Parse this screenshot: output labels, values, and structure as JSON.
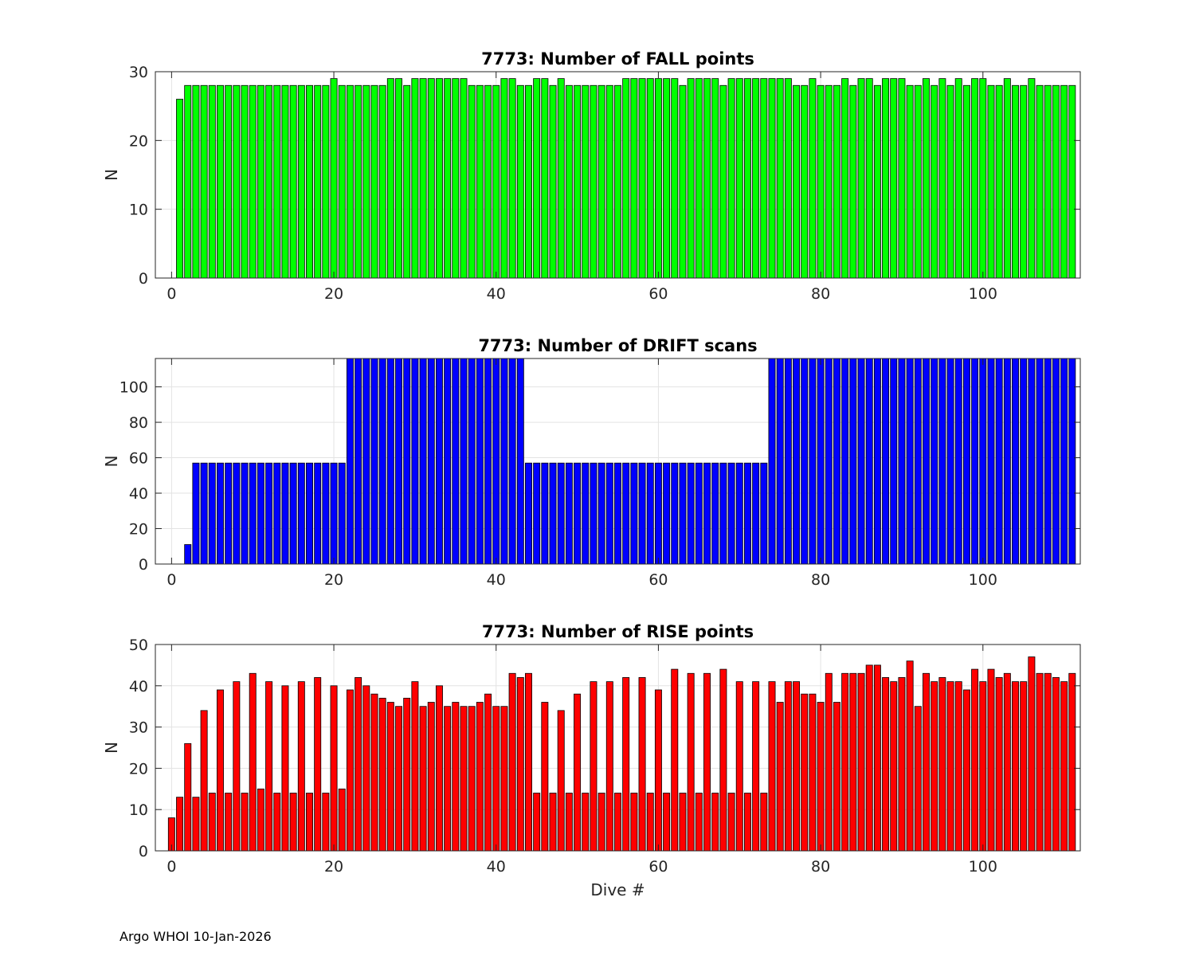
{
  "footer_text": "Argo WHOI 10-Jan-2026",
  "chart_data": [
    {
      "type": "bar",
      "title": "7773: Number of FALL points",
      "xlabel": "",
      "ylabel": "N",
      "xlim": [
        -2,
        112
      ],
      "ylim": [
        0,
        30
      ],
      "xticks": [
        0,
        20,
        40,
        60,
        80,
        100
      ],
      "yticks": [
        0,
        10,
        20,
        30
      ],
      "grid": true,
      "color": "#00ff00",
      "x_start": 0,
      "values": [
        0,
        26,
        28,
        28,
        28,
        28,
        28,
        28,
        28,
        28,
        28,
        28,
        28,
        28,
        28,
        28,
        28,
        28,
        28,
        28,
        29,
        28,
        28,
        28,
        28,
        28,
        28,
        29,
        29,
        28,
        29,
        29,
        29,
        29,
        29,
        29,
        29,
        28,
        28,
        28,
        28,
        29,
        29,
        28,
        28,
        29,
        29,
        28,
        29,
        28,
        28,
        28,
        28,
        28,
        28,
        28,
        29,
        29,
        29,
        29,
        29,
        29,
        29,
        28,
        29,
        29,
        29,
        29,
        28,
        29,
        29,
        29,
        29,
        29,
        29,
        29,
        29,
        28,
        28,
        29,
        28,
        28,
        28,
        29,
        28,
        29,
        29,
        28,
        29,
        29,
        29,
        28,
        28,
        29,
        28,
        29,
        28,
        29,
        28,
        29,
        29,
        28,
        28,
        29,
        28,
        28,
        29,
        28,
        28,
        28,
        28,
        28
      ]
    },
    {
      "type": "bar",
      "title": "7773: Number of DRIFT scans",
      "xlabel": "",
      "ylabel": "N",
      "xlim": [
        -2,
        112
      ],
      "ylim": [
        0,
        116
      ],
      "xticks": [
        0,
        20,
        40,
        60,
        80,
        100
      ],
      "yticks": [
        0,
        20,
        40,
        60,
        80,
        100
      ],
      "grid": true,
      "color": "#0000ff",
      "x_start": 0,
      "values": [
        0,
        0,
        11,
        57,
        57,
        57,
        57,
        57,
        57,
        57,
        57,
        57,
        57,
        57,
        57,
        57,
        57,
        57,
        57,
        57,
        57,
        57,
        116,
        116,
        116,
        116,
        116,
        116,
        116,
        116,
        116,
        116,
        116,
        116,
        116,
        116,
        116,
        116,
        116,
        116,
        116,
        116,
        116,
        116,
        57,
        57,
        57,
        57,
        57,
        57,
        57,
        57,
        57,
        57,
        57,
        57,
        57,
        57,
        57,
        57,
        57,
        57,
        57,
        57,
        57,
        57,
        57,
        57,
        57,
        57,
        57,
        57,
        57,
        57,
        116,
        116,
        116,
        116,
        116,
        116,
        116,
        116,
        116,
        116,
        116,
        116,
        116,
        116,
        116,
        116,
        116,
        116,
        116,
        116,
        116,
        116,
        116,
        116,
        116,
        116,
        116,
        116,
        116,
        116,
        116,
        116,
        116,
        116,
        116,
        116,
        116,
        116
      ]
    },
    {
      "type": "bar",
      "title": "7773: Number of RISE points",
      "xlabel": "Dive #",
      "ylabel": "N",
      "xlim": [
        -2,
        112
      ],
      "ylim": [
        0,
        50
      ],
      "xticks": [
        0,
        20,
        40,
        60,
        80,
        100
      ],
      "yticks": [
        0,
        10,
        20,
        30,
        40,
        50
      ],
      "grid": true,
      "color": "#ff0000",
      "x_start": 0,
      "values": [
        8,
        13,
        26,
        13,
        34,
        14,
        39,
        14,
        41,
        14,
        43,
        15,
        41,
        14,
        40,
        14,
        41,
        14,
        42,
        14,
        40,
        15,
        39,
        42,
        40,
        38,
        37,
        36,
        35,
        37,
        41,
        35,
        36,
        40,
        35,
        36,
        35,
        35,
        36,
        38,
        35,
        35,
        43,
        42,
        43,
        14,
        36,
        14,
        34,
        14,
        38,
        14,
        41,
        14,
        41,
        14,
        42,
        14,
        42,
        14,
        39,
        14,
        44,
        14,
        43,
        14,
        43,
        14,
        44,
        14,
        41,
        14,
        41,
        14,
        41,
        36,
        41,
        41,
        38,
        38,
        36,
        43,
        36,
        43,
        43,
        43,
        45,
        45,
        42,
        41,
        42,
        46,
        35,
        43,
        41,
        42,
        41,
        41,
        39,
        44,
        41,
        44,
        42,
        43,
        41,
        41,
        47,
        43,
        43,
        42,
        41,
        43
      ]
    }
  ]
}
